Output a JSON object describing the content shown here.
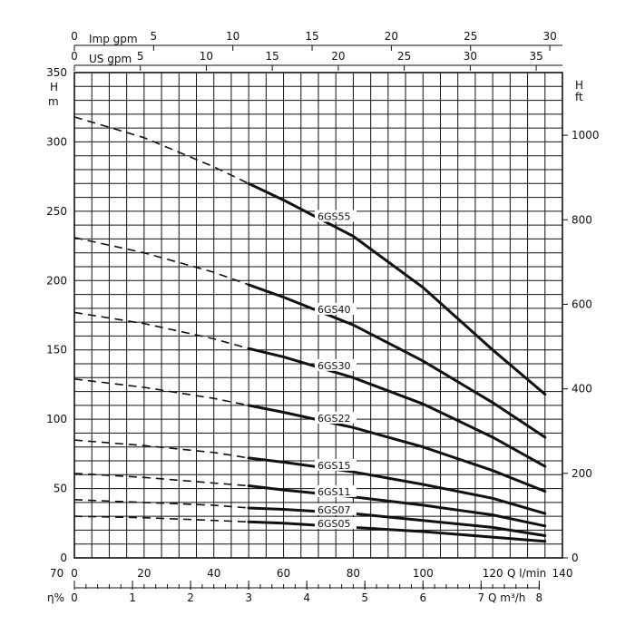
{
  "chart_data": {
    "type": "line",
    "axes": {
      "left": {
        "label_top": "H",
        "label_bottom": "m",
        "range": [
          0,
          350
        ],
        "ticks": [
          0,
          50,
          100,
          150,
          200,
          250,
          300,
          350
        ]
      },
      "right": {
        "label_top": "H",
        "label_bottom": "ft",
        "ticks": [
          0,
          200,
          400,
          600,
          800,
          1000
        ]
      },
      "bottom_primary": {
        "label": "Q l/min",
        "range": [
          0,
          140
        ],
        "ticks": [
          0,
          20,
          40,
          60,
          80,
          100,
          120,
          140
        ]
      },
      "bottom_secondary": {
        "label": "Q m³/h",
        "ticks": [
          0,
          1,
          2,
          3,
          4,
          5,
          6,
          7,
          8
        ]
      },
      "top_outer": {
        "label": "Imp gpm",
        "ticks": [
          0,
          5,
          10,
          15,
          20,
          25,
          30
        ]
      },
      "top_inner": {
        "label": "US gpm",
        "ticks": [
          0,
          5,
          10,
          15,
          20,
          25,
          30,
          35
        ]
      }
    },
    "extra_labels": {
      "efficiency_max": "70",
      "efficiency_symbol": "η%"
    },
    "grid": true,
    "series": [
      {
        "name": "6GS55",
        "dashed_until": 50,
        "x": [
          0,
          20,
          40,
          50,
          60,
          80,
          100,
          120,
          135
        ],
        "y": [
          318,
          303,
          282,
          270,
          258,
          232,
          195,
          150,
          118
        ]
      },
      {
        "name": "6GS40",
        "dashed_until": 50,
        "x": [
          0,
          20,
          40,
          50,
          60,
          80,
          100,
          120,
          135
        ],
        "y": [
          231,
          220,
          206,
          197,
          188,
          168,
          142,
          112,
          87
        ]
      },
      {
        "name": "6GS30",
        "dashed_until": 50,
        "x": [
          0,
          20,
          40,
          50,
          60,
          80,
          100,
          120,
          135
        ],
        "y": [
          177,
          169,
          158,
          151,
          145,
          130,
          111,
          87,
          66
        ]
      },
      {
        "name": "6GS22",
        "dashed_until": 50,
        "x": [
          0,
          20,
          40,
          50,
          60,
          80,
          100,
          120,
          135
        ],
        "y": [
          129,
          123,
          115,
          110,
          105,
          94,
          80,
          63,
          48
        ]
      },
      {
        "name": "6GS15",
        "dashed_until": 50,
        "x": [
          0,
          20,
          40,
          50,
          60,
          80,
          100,
          120,
          135
        ],
        "y": [
          85,
          81,
          76,
          72,
          69,
          62,
          53,
          43,
          32
        ]
      },
      {
        "name": "6GS11",
        "dashed_until": 50,
        "x": [
          0,
          20,
          40,
          50,
          60,
          80,
          100,
          120,
          135
        ],
        "y": [
          61,
          58,
          54,
          52,
          49,
          44,
          38,
          31,
          23
        ]
      },
      {
        "name": "6GS07",
        "dashed_until": 50,
        "x": [
          0,
          20,
          40,
          50,
          60,
          80,
          100,
          120,
          135
        ],
        "y": [
          42,
          40,
          38,
          36,
          35,
          32,
          27,
          22,
          16
        ]
      },
      {
        "name": "6GS05",
        "dashed_until": 50,
        "x": [
          0,
          20,
          40,
          50,
          60,
          80,
          100,
          120,
          135
        ],
        "y": [
          30,
          29,
          27,
          26,
          25,
          22,
          19,
          15,
          12
        ]
      }
    ]
  }
}
